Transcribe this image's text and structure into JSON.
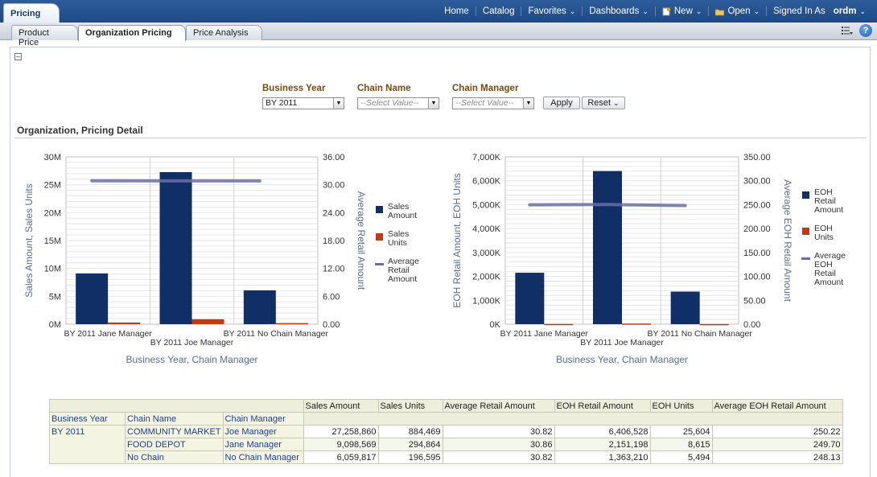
{
  "app": {
    "title": "Pricing"
  },
  "topnav": {
    "home": "Home",
    "catalog": "Catalog",
    "favorites": "Favorites",
    "dashboards": "Dashboards",
    "new": "New",
    "open": "Open",
    "signed_in_as": "Signed In As",
    "user": "ordm"
  },
  "tabs": [
    "Product Price",
    "Organization Pricing",
    "Price Analysis"
  ],
  "prompts": {
    "business_year": {
      "label": "Business Year",
      "value": "BY 2011"
    },
    "chain_name": {
      "label": "Chain Name",
      "value": "--Select Value--"
    },
    "chain_manager": {
      "label": "Chain Manager",
      "value": "--Select Value--"
    },
    "apply": "Apply",
    "reset": "Reset"
  },
  "section_title": "Organization, Pricing Detail",
  "chart_data": [
    {
      "type": "bar",
      "categories": [
        "BY 2011 Jane Manager",
        "BY 2011 Joe Manager",
        "BY 2011 No Chain Manager"
      ],
      "series": [
        {
          "name": "Sales Amount",
          "axis": "left",
          "kind": "bar",
          "color": "#0f2f66",
          "values": [
            9098569,
            27258860,
            6059817
          ]
        },
        {
          "name": "Sales Units",
          "axis": "left",
          "kind": "bar",
          "color": "#c8380e",
          "values": [
            294864,
            884469,
            196595
          ]
        },
        {
          "name": "Average Retail Amount",
          "axis": "right",
          "kind": "line",
          "color": "#6a6ea4",
          "values": [
            30.86,
            30.82,
            30.82
          ]
        }
      ],
      "ylabel": "Sales Amount, Sales Units",
      "y2label": "Average Retail Amount",
      "xlabel": "Business Year, Chain Manager",
      "ylim": [
        0,
        30000000
      ],
      "y2lim": [
        0,
        36
      ],
      "yticks": [
        "0M",
        "5M",
        "10M",
        "15M",
        "20M",
        "25M",
        "30M"
      ],
      "y2ticks": [
        "0.00",
        "6.00",
        "12.00",
        "18.00",
        "24.00",
        "30.00",
        "36.00"
      ],
      "grid": true,
      "legend": "right"
    },
    {
      "type": "bar",
      "categories": [
        "BY 2011 Jane Manager",
        "BY 2011 Joe Manager",
        "BY 2011 No Chain Manager"
      ],
      "series": [
        {
          "name": "EOH Retail Amount",
          "axis": "left",
          "kind": "bar",
          "color": "#0f2f66",
          "values": [
            2151198,
            6406528,
            1363210
          ]
        },
        {
          "name": "EOH Units",
          "axis": "left",
          "kind": "bar",
          "color": "#c8380e",
          "values": [
            8615,
            25604,
            5494
          ]
        },
        {
          "name": "Average EOH Retail Amount",
          "axis": "right",
          "kind": "line",
          "color": "#6a6ea4",
          "values": [
            249.7,
            250.22,
            248.13
          ]
        }
      ],
      "ylabel": "EOH Retail Amount, EOH Units",
      "y2label": "Average EOH Retail Amount",
      "xlabel": "Business Year, Chain Manager",
      "ylim": [
        0,
        7000000
      ],
      "y2lim": [
        0,
        350
      ],
      "yticks": [
        "0K",
        "1,000K",
        "2,000K",
        "3,000K",
        "4,000K",
        "5,000K",
        "6,000K",
        "7,000K"
      ],
      "y2ticks": [
        "0.00",
        "50.00",
        "100.00",
        "150.00",
        "200.00",
        "250.00",
        "300.00",
        "350.00"
      ],
      "grid": true,
      "legend": "right"
    }
  ],
  "table": {
    "columns": [
      "Sales Amount",
      "Sales Units",
      "Average Retail Amount",
      "EOH Retail Amount",
      "EOH Units",
      "Average EOH Retail Amount"
    ],
    "row_headers": [
      "Business Year",
      "Chain Name",
      "Chain Manager"
    ],
    "business_year": "BY 2011",
    "rows": [
      {
        "chain": "COMMUNITY MARKET",
        "manager": "Joe Manager",
        "values": [
          "27,258,860",
          "884,469",
          "30.82",
          "6,406,528",
          "25,604",
          "250.22"
        ]
      },
      {
        "chain": "FOOD DEPOT",
        "manager": "Jane Manager",
        "values": [
          "9,098,569",
          "294,864",
          "30.86",
          "2,151,198",
          "8,615",
          "249.70"
        ]
      },
      {
        "chain": "No Chain",
        "manager": "No Chain Manager",
        "values": [
          "6,059,817",
          "196,595",
          "30.82",
          "1,363,210",
          "5,494",
          "248.13"
        ]
      }
    ]
  }
}
